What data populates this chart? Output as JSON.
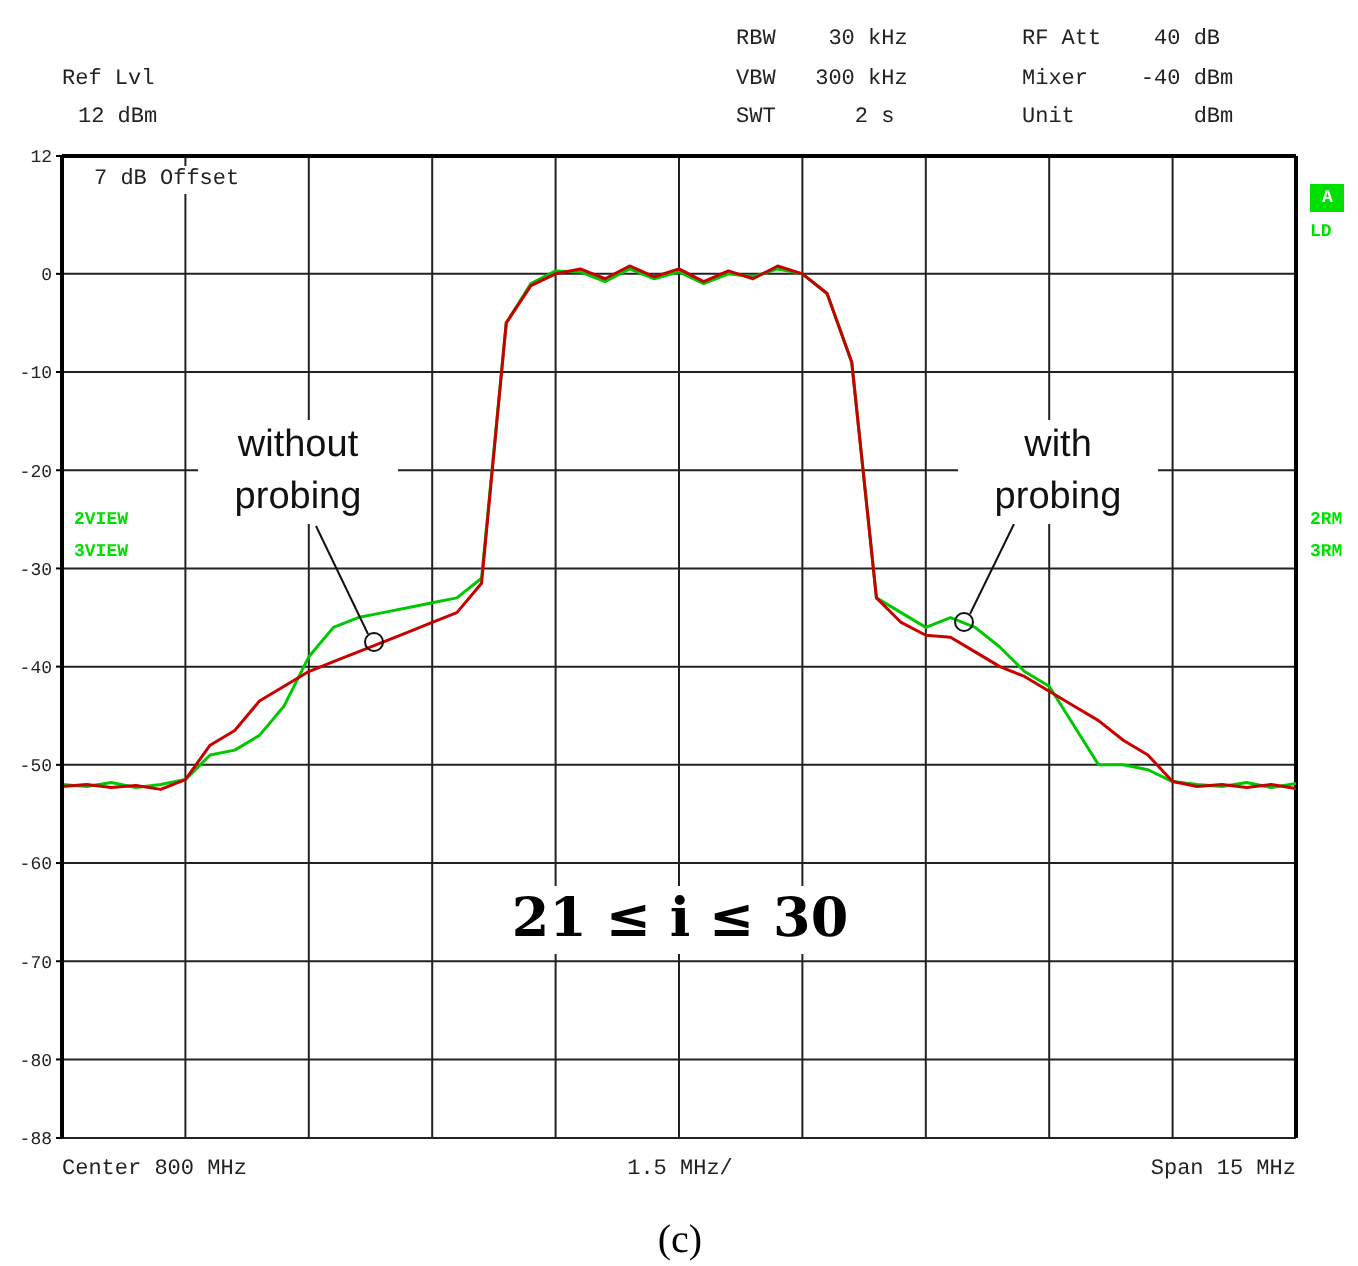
{
  "chart_data": {
    "type": "line",
    "categories": [
      null,
      null,
      null,
      null,
      null,
      null,
      null,
      null,
      null,
      null,
      null,
      null,
      null,
      null,
      null,
      null,
      null,
      null,
      null,
      null,
      null,
      null,
      null,
      null,
      null,
      null,
      null,
      null,
      null,
      null,
      null,
      null,
      null,
      null,
      null,
      null,
      null,
      null,
      null,
      null,
      null,
      null,
      null,
      null,
      null,
      null,
      null,
      null,
      null,
      null,
      null
    ],
    "series": [
      {
        "color": "#00c800",
        "values": [
          -52,
          -52.2,
          -51.8,
          -52.3,
          -52,
          -51.5,
          -49,
          -48.5,
          -47,
          -44,
          -39,
          -36,
          -35,
          -34.5,
          -34,
          -33.5,
          -33,
          -31,
          -5,
          -1,
          0.3,
          0.2,
          -0.8,
          0.5,
          -0.5,
          0.2,
          -1,
          0,
          -0.3,
          0.5,
          0,
          -2,
          -9,
          -33,
          -34.5,
          -36,
          -35,
          -36,
          -38,
          -40.5,
          -42,
          -46,
          -50,
          -50,
          -50.5,
          -51.7,
          -52,
          -52.2,
          -51.8,
          -52.3,
          -51.9
        ]
      },
      {
        "color": "#c80000",
        "values": [
          -52.2,
          -52,
          -52.3,
          -52.1,
          -52.5,
          -51.5,
          -48,
          -46.5,
          -43.5,
          -42,
          -40.5,
          -39.5,
          -38.5,
          -37.5,
          -36.5,
          -35.5,
          -34.5,
          -31.5,
          -5,
          -1.2,
          0,
          0.5,
          -0.5,
          0.8,
          -0.3,
          0.5,
          -0.8,
          0.3,
          -0.5,
          0.8,
          0,
          -2,
          -9,
          -33,
          -35.5,
          -36.8,
          -37,
          -38.5,
          -40,
          -41,
          -42.5,
          -44,
          -45.5,
          -47.5,
          -49,
          -51.7,
          -52.2,
          -52,
          -52.3,
          -52,
          -52.4
        ]
      }
    ],
    "ylim": [
      -88,
      12
    ],
    "yticks": [
      12,
      0,
      -10,
      -20,
      -30,
      -40,
      -50,
      -60,
      -70,
      -80,
      -88
    ],
    "grid": true,
    "marker": "none",
    "line_style": "solid",
    "annotations": [
      "Ref Lvl",
      "12 dBm",
      "RBW    30 kHz",
      "VBW   300 kHz",
      "SWT      2 s",
      "RF Att    40 dB",
      "Mixer    -40 dBm",
      "Unit         dBm",
      "7 dB Offset",
      "A",
      "LD",
      "2VIEW",
      "3VIEW",
      "2RM",
      "3RM",
      "Center 800 MHz",
      "1.5 MHz/",
      "Span 15 MHz",
      "without probing",
      "with probing",
      "21 ≤ i ≤ 30",
      "(c)"
    ]
  }
}
